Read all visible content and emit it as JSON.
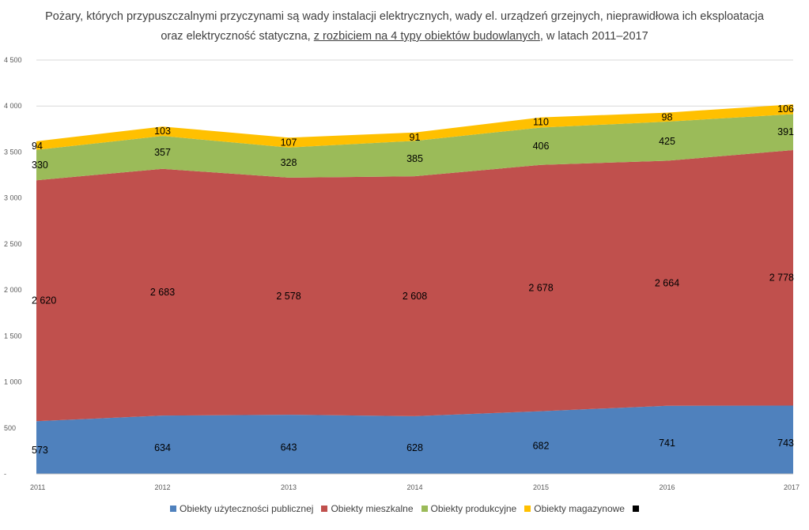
{
  "title_line1": "Pożary, których przypuszczalnymi  przyczynami są wady instalacji elektrycznych,  wady el. urządzeń grzejnych,  nieprawidłowa ich eksploatacja",
  "title_line2_prefix": "oraz elektryczność statyczna, ",
  "title_line2_underlined": "z rozbiciem na 4 typy obiektów budowlanych",
  "title_line2_suffix": ", w latach 2011–2017",
  "chart_data": {
    "type": "area",
    "stacked": true,
    "x": [
      "2011",
      "2012",
      "2013",
      "2014",
      "2015",
      "2016",
      "2017"
    ],
    "ylim": [
      0,
      4500
    ],
    "yticks": [
      0,
      500,
      1000,
      1500,
      2000,
      2500,
      3000,
      3500,
      4000,
      4500
    ],
    "ytick_labels": [
      "-",
      "500",
      "1 000",
      "1 500",
      "2 000",
      "2 500",
      "3 000",
      "3 500",
      "4 000",
      "4 500"
    ],
    "grid": true,
    "legend_position": "bottom",
    "series": [
      {
        "name": "Obiekty użyteczności publicznej",
        "color": "#4f81bd",
        "values": [
          573,
          634,
          643,
          628,
          682,
          741,
          743
        ],
        "labels": [
          "573",
          "634",
          "643",
          "628",
          "682",
          "741",
          "743"
        ]
      },
      {
        "name": "Obiekty mieszkalne",
        "color": "#c0504d",
        "values": [
          2620,
          2683,
          2578,
          2608,
          2678,
          2664,
          2778
        ],
        "labels": [
          "2 620",
          "2 683",
          "2 578",
          "2 608",
          "2 678",
          "2 664",
          "2 778"
        ]
      },
      {
        "name": "Obiekty produkcyjne",
        "color": "#9bbb59",
        "values": [
          330,
          357,
          328,
          385,
          406,
          425,
          391
        ],
        "labels": [
          "330",
          "357",
          "328",
          "385",
          "406",
          "425",
          "391"
        ]
      },
      {
        "name": "Obiekty magazynowe",
        "color": "#ffc000",
        "values": [
          94,
          103,
          107,
          91,
          110,
          98,
          106
        ],
        "labels": [
          "94",
          "103",
          "107",
          "91",
          "110",
          "98",
          "106"
        ]
      }
    ],
    "extra_legend_marker_color": "#000000"
  }
}
